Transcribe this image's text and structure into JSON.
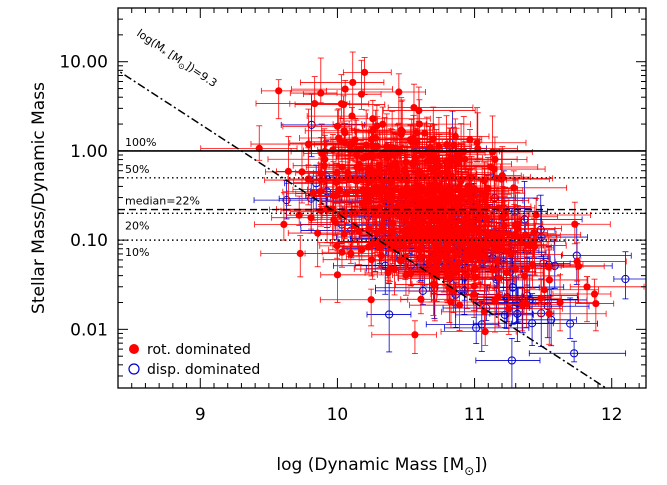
{
  "chart_data": {
    "type": "scatter",
    "xlabel": "log (Dynamic Mass [M",
    "xlabel_sub": "⊙",
    "xlabel_close": "])",
    "ylabel": "Stellar Mass/Dynamic Mass",
    "xlim": [
      8.4,
      12.25
    ],
    "ylim": [
      0.0022,
      40
    ],
    "yscale": "log",
    "x_ticks": [
      9,
      10,
      11,
      12
    ],
    "x_tick_labels": [
      "9",
      "10",
      "11",
      "12"
    ],
    "y_ticks": [
      0.01,
      0.1,
      1,
      10
    ],
    "y_tick_labels": [
      "0.01",
      "0.10",
      "1.00",
      "10.00"
    ],
    "hlines": [
      {
        "y": 1.0,
        "label": "100%",
        "style": "solid"
      },
      {
        "y": 0.5,
        "label": "50%",
        "style": "dotted"
      },
      {
        "y": 0.22,
        "label": "median=22%",
        "style": "dashed"
      },
      {
        "y": 0.2,
        "label": "20%",
        "style": "dotted"
      },
      {
        "y": 0.1,
        "label": "10%",
        "style": "dotted"
      }
    ],
    "diagonal": {
      "label_main": "log(M",
      "label_sub": "*",
      "label_mid": " [M",
      "label_sub2": "⊙",
      "label_end": "])=9.3",
      "style": "dash-dot",
      "stellar_log_mass": 9.3
    },
    "colors": {
      "rot": "#ff0000",
      "disp": "#0000cc"
    },
    "legend": {
      "position": "bottom-left",
      "entries": [
        {
          "name": "rot. dominated",
          "marker": "filled-circle",
          "color": "#ff0000"
        },
        {
          "name": "disp. dominated",
          "marker": "open-circle",
          "color": "#0000cc"
        }
      ]
    },
    "series": [
      {
        "name": "rot. dominated",
        "n_points": 520,
        "x_center": 10.65,
        "x_spread": 0.42,
        "y_center": 0.25,
        "y_spread_dex": 0.45
      },
      {
        "name": "disp. dominated",
        "n_points": 130,
        "x_center": 10.9,
        "x_spread": 0.45,
        "y_center": 0.12,
        "y_spread_dex": 0.4
      }
    ]
  }
}
